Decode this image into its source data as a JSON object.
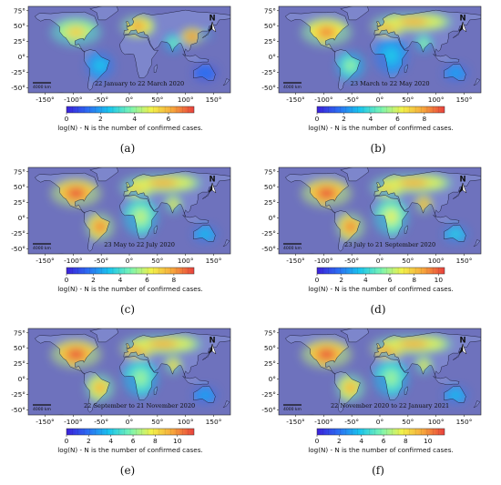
{
  "panels": [
    {
      "tag": "(a)",
      "date_range": "22 January to 22 March 2020",
      "colorbar_ticks": [
        "0",
        "2",
        "4",
        "6"
      ],
      "colorbar_max": 7.5,
      "hotspots": [
        [
          "us",
          0.75
        ],
        [
          "eu",
          0.9
        ],
        [
          "cn",
          1.0
        ],
        [
          "in",
          0.55
        ],
        [
          "br",
          0.35
        ],
        [
          "au",
          0.2
        ],
        [
          "jp",
          0.6
        ]
      ]
    },
    {
      "tag": "(b)",
      "date_range": "23 March to 22 May 2020",
      "colorbar_ticks": [
        "0",
        "2",
        "4",
        "6",
        "8"
      ],
      "colorbar_max": 9.5,
      "hotspots": [
        [
          "us",
          0.9
        ],
        [
          "eu",
          0.95
        ],
        [
          "ru",
          0.85
        ],
        [
          "br",
          0.55
        ],
        [
          "in",
          0.6
        ],
        [
          "af",
          0.35
        ],
        [
          "au",
          0.3
        ]
      ]
    },
    {
      "tag": "(c)",
      "date_range": "23 May to 22 July 2020",
      "colorbar_ticks": [
        "0",
        "2",
        "4",
        "6",
        "8"
      ],
      "colorbar_max": 9.5,
      "hotspots": [
        [
          "us",
          1.0
        ],
        [
          "br",
          0.95
        ],
        [
          "eu",
          0.85
        ],
        [
          "ru",
          0.85
        ],
        [
          "in",
          0.8
        ],
        [
          "af",
          0.6
        ],
        [
          "au",
          0.35
        ]
      ]
    },
    {
      "tag": "(d)",
      "date_range": "23 July to 21 September 2020",
      "colorbar_ticks": [
        "0",
        "2",
        "4",
        "6",
        "8",
        "10"
      ],
      "colorbar_max": 10.5,
      "hotspots": [
        [
          "us",
          1.0
        ],
        [
          "br",
          0.95
        ],
        [
          "eu",
          0.85
        ],
        [
          "ru",
          0.85
        ],
        [
          "in",
          0.95
        ],
        [
          "af",
          0.65
        ],
        [
          "au",
          0.4
        ]
      ]
    },
    {
      "tag": "(e)",
      "date_range": "22 September to 21 November 2020",
      "colorbar_ticks": [
        "0",
        "2",
        "4",
        "6",
        "8",
        "10"
      ],
      "colorbar_max": 11.5,
      "hotspots": [
        [
          "us",
          1.0
        ],
        [
          "eu",
          1.0
        ],
        [
          "ru",
          0.85
        ],
        [
          "br",
          0.85
        ],
        [
          "in",
          0.85
        ],
        [
          "af",
          0.55
        ],
        [
          "au",
          0.3
        ]
      ]
    },
    {
      "tag": "(f)",
      "date_range": "22 November 2020 to 22 January 2021",
      "colorbar_ticks": [
        "0",
        "2",
        "4",
        "6",
        "8",
        "10"
      ],
      "colorbar_max": 11.5,
      "hotspots": [
        [
          "us",
          1.0
        ],
        [
          "eu",
          1.0
        ],
        [
          "ru",
          0.85
        ],
        [
          "br",
          0.85
        ],
        [
          "in",
          0.8
        ],
        [
          "af",
          0.55
        ],
        [
          "au",
          0.35
        ]
      ]
    }
  ],
  "x_ticks": [
    "-150°",
    "-100°",
    "-50°",
    "0°",
    "50°",
    "100°",
    "150°"
  ],
  "y_ticks": [
    "75°",
    "50°",
    "25°",
    "0°",
    "-25°",
    "-50°"
  ],
  "colorbar_label": "log(N) - N is the number of confirmed cases.",
  "north_label": "N",
  "scale_label": "4000 km",
  "colors": {
    "ocean": "#6e72bd",
    "land_low": "#7d86cc",
    "cmap": [
      "#3b1fd9",
      "#2c6cf2",
      "#19c4ee",
      "#78f4b4",
      "#f2f24a",
      "#f7a53c",
      "#e8403c"
    ]
  }
}
